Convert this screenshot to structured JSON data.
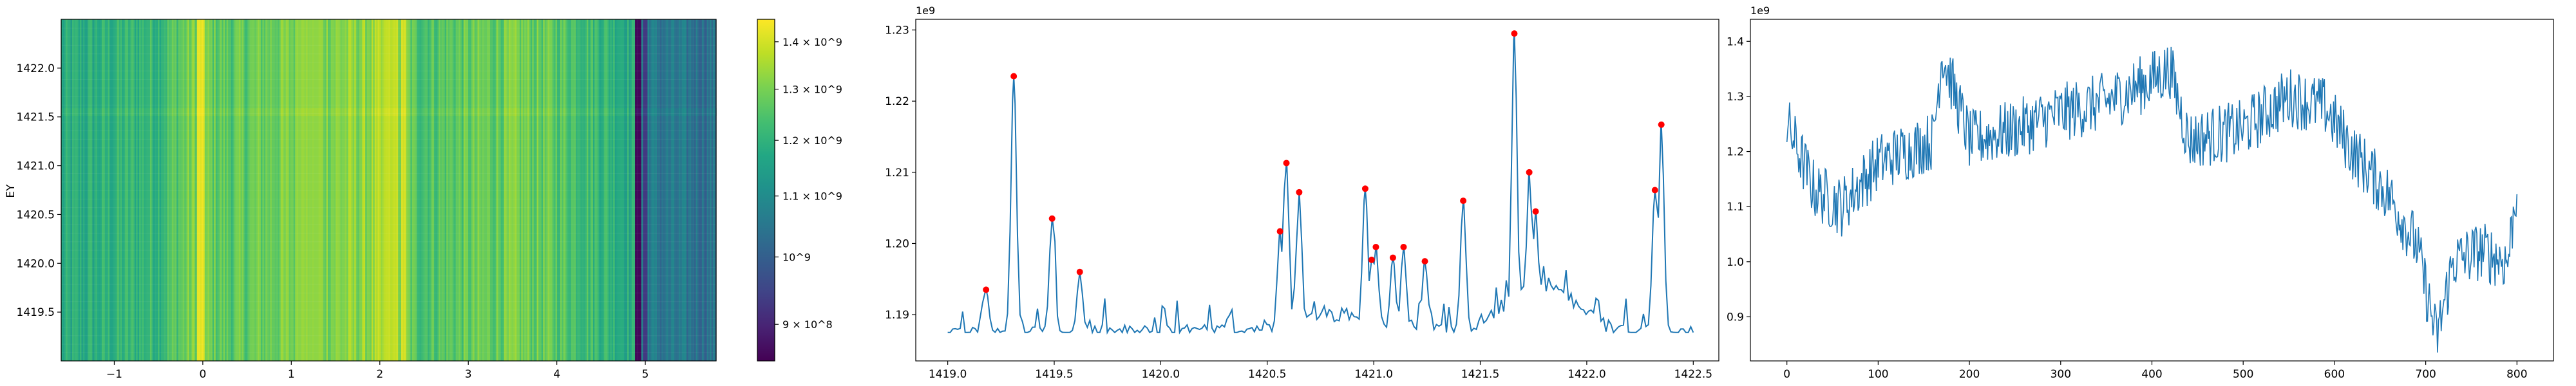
{
  "chart_data": [
    {
      "type": "heatmap",
      "ylabel": "EY",
      "xlim": [
        -1.6,
        5.8
      ],
      "ylim": [
        1419.0,
        1422.5
      ],
      "xticks": [
        -1,
        0,
        1,
        2,
        3,
        4,
        5
      ],
      "yticks": [
        1419.5,
        1420.0,
        1420.5,
        1421.0,
        1421.5,
        1422.0
      ],
      "xtick_labels": [
        "−1",
        "0",
        "1",
        "2",
        "3",
        "4",
        "5"
      ],
      "ytick_labels": [
        "1419.5",
        "1420.0",
        "1420.5",
        "1421.0",
        "1421.5",
        "1422.0"
      ],
      "colormap": "viridis",
      "grid": false,
      "vertical_features": [
        {
          "x": -0.02,
          "width": 0.08,
          "value": 1420000000.0
        },
        {
          "x": 2.12,
          "width": 0.14,
          "value": 1380000000.0
        },
        {
          "x": 2.27,
          "width": 0.06,
          "value": 1400000000.0
        },
        {
          "x": 1.2,
          "width": 0.3,
          "value": 1330000000.0
        },
        {
          "x": 4.92,
          "width": 0.08,
          "value": 860000000.0
        },
        {
          "x": 5.0,
          "width": 0.05,
          "value": 930000000.0
        }
      ],
      "column_profile": [
        {
          "x": -1.6,
          "value": 1170000000.0
        },
        {
          "x": -1.0,
          "value": 1200000000.0
        },
        {
          "x": -0.5,
          "value": 1220000000.0
        },
        {
          "x": -0.1,
          "value": 1300000000.0
        },
        {
          "x": 0.3,
          "value": 1260000000.0
        },
        {
          "x": 0.8,
          "value": 1290000000.0
        },
        {
          "x": 1.3,
          "value": 1310000000.0
        },
        {
          "x": 1.8,
          "value": 1320000000.0
        },
        {
          "x": 2.2,
          "value": 1350000000.0
        },
        {
          "x": 2.4,
          "value": 1250000000.0
        },
        {
          "x": 3.0,
          "value": 1270000000.0
        },
        {
          "x": 3.6,
          "value": 1290000000.0
        },
        {
          "x": 4.2,
          "value": 1250000000.0
        },
        {
          "x": 4.7,
          "value": 1200000000.0
        },
        {
          "x": 4.9,
          "value": 1170000000.0
        },
        {
          "x": 5.1,
          "value": 1050000000.0
        },
        {
          "x": 5.8,
          "value": 1040000000.0
        }
      ],
      "horizontal_band": {
        "y": 1421.55,
        "value_delta": 30000000.0
      },
      "colorbar": {
        "vmin": 850000000.0,
        "vmax": 1450000000.0,
        "scale": "log",
        "ticks": [
          900000000.0,
          1000000000.0,
          1100000000.0,
          1200000000.0,
          1300000000.0,
          1400000000.0
        ],
        "tick_labels": [
          "9 × 10^8",
          "10^9",
          "1.1 × 10^9",
          "1.2 × 10^9",
          "1.3 × 10^9",
          "1.4 × 10^9"
        ]
      }
    },
    {
      "type": "line",
      "x_range": [
        1419.0,
        1422.5
      ],
      "ylim": [
        1183500000.0,
        1231500000.0
      ],
      "xticks": [
        1419.0,
        1419.5,
        1420.0,
        1420.5,
        1421.0,
        1421.5,
        1422.0,
        1422.5
      ],
      "yticks": [
        1190000000.0,
        1200000000.0,
        1210000000.0,
        1220000000.0,
        1230000000.0
      ],
      "xtick_labels": [
        "1419.0",
        "1419.5",
        "1420.0",
        "1420.5",
        "1421.0",
        "1421.5",
        "1422.0",
        "1422.5"
      ],
      "ytick_labels": [
        "1.19",
        "1.20",
        "1.21",
        "1.22",
        "1.23"
      ],
      "offset_text": "1e9",
      "line_color": "#1f77b4",
      "marker_color": "#ff0000",
      "num_points": 300,
      "baseline": 1187500000.0,
      "peaks": [
        {
          "x": 1419.18,
          "y": 1193500000.0
        },
        {
          "x": 1419.31,
          "y": 1223500000.0
        },
        {
          "x": 1419.49,
          "y": 1203500000.0
        },
        {
          "x": 1419.62,
          "y": 1196000000.0
        },
        {
          "x": 1420.56,
          "y": 1201700000.0
        },
        {
          "x": 1420.59,
          "y": 1211300000.0
        },
        {
          "x": 1420.65,
          "y": 1207200000.0
        },
        {
          "x": 1420.96,
          "y": 1207700000.0
        },
        {
          "x": 1420.99,
          "y": 1197700000.0
        },
        {
          "x": 1421.01,
          "y": 1199500000.0
        },
        {
          "x": 1421.09,
          "y": 1198000000.0
        },
        {
          "x": 1421.14,
          "y": 1199500000.0
        },
        {
          "x": 1421.24,
          "y": 1197500000.0
        },
        {
          "x": 1421.42,
          "y": 1206000000.0
        },
        {
          "x": 1421.66,
          "y": 1229500000.0
        },
        {
          "x": 1421.73,
          "y": 1210000000.0
        },
        {
          "x": 1421.76,
          "y": 1204500000.0
        },
        {
          "x": 1422.32,
          "y": 1207500000.0
        },
        {
          "x": 1422.35,
          "y": 1216700000.0
        }
      ]
    },
    {
      "type": "line",
      "x_range": [
        0,
        800
      ],
      "ylim": [
        820000000.0,
        1440000000.0
      ],
      "xticks": [
        0,
        100,
        200,
        300,
        400,
        500,
        600,
        700,
        800
      ],
      "yticks": [
        900000000.0,
        1000000000.0,
        1100000000.0,
        1200000000.0,
        1300000000.0,
        1400000000.0
      ],
      "xtick_labels": [
        "0",
        "100",
        "200",
        "300",
        "400",
        "500",
        "600",
        "700",
        "800"
      ],
      "ytick_labels": [
        "0.9",
        "1.0",
        "1.1",
        "1.2",
        "1.3",
        "1.4"
      ],
      "offset_text": "1e9",
      "line_color": "#1f77b4",
      "num_points": 801,
      "trend": [
        {
          "x": 0,
          "y": 1250000000.0
        },
        {
          "x": 30,
          "y": 1130000000.0
        },
        {
          "x": 60,
          "y": 1100000000.0
        },
        {
          "x": 100,
          "y": 1180000000.0
        },
        {
          "x": 160,
          "y": 1220000000.0
        },
        {
          "x": 170,
          "y": 1380000000.0
        },
        {
          "x": 200,
          "y": 1220000000.0
        },
        {
          "x": 250,
          "y": 1240000000.0
        },
        {
          "x": 300,
          "y": 1270000000.0
        },
        {
          "x": 350,
          "y": 1290000000.0
        },
        {
          "x": 400,
          "y": 1330000000.0
        },
        {
          "x": 420,
          "y": 1350000000.0
        },
        {
          "x": 440,
          "y": 1220000000.0
        },
        {
          "x": 500,
          "y": 1240000000.0
        },
        {
          "x": 550,
          "y": 1300000000.0
        },
        {
          "x": 590,
          "y": 1280000000.0
        },
        {
          "x": 620,
          "y": 1200000000.0
        },
        {
          "x": 660,
          "y": 1120000000.0
        },
        {
          "x": 690,
          "y": 1030000000.0
        },
        {
          "x": 712,
          "y": 860000000.0
        },
        {
          "x": 730,
          "y": 1000000000.0
        },
        {
          "x": 760,
          "y": 1020000000.0
        },
        {
          "x": 790,
          "y": 1000000000.0
        },
        {
          "x": 800,
          "y": 1140000000.0
        }
      ]
    }
  ]
}
